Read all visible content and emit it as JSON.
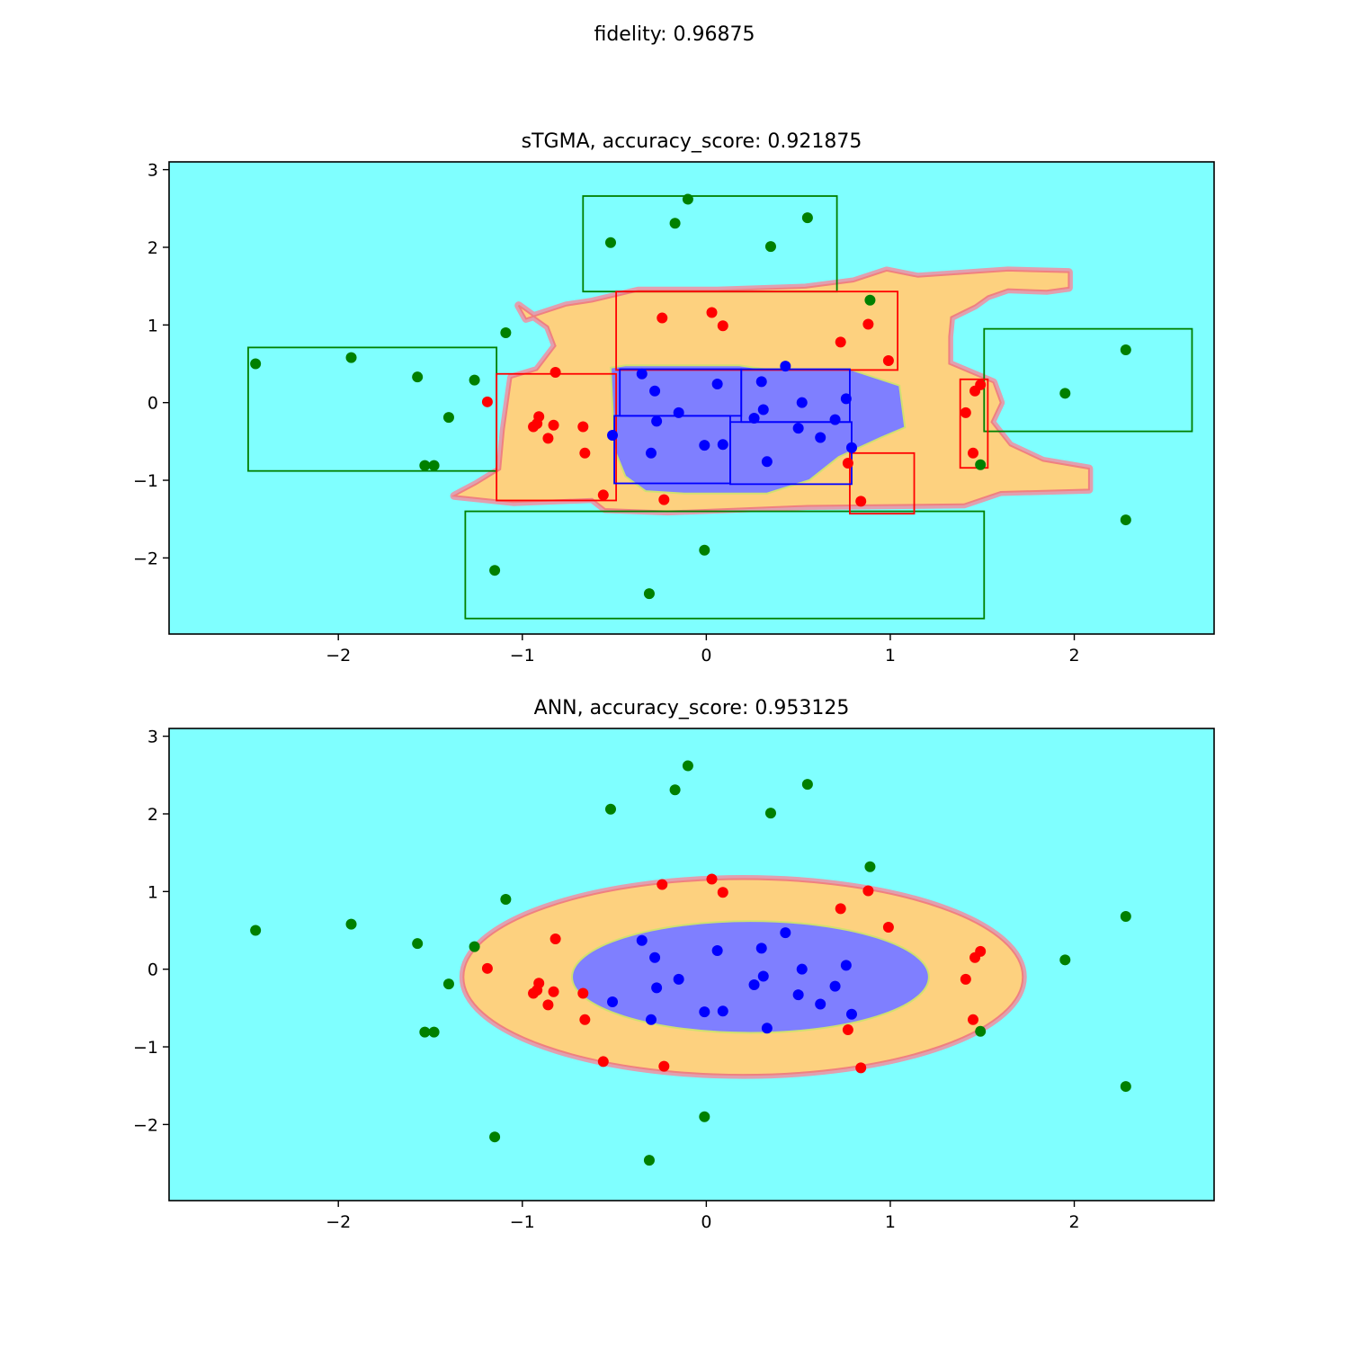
{
  "figure_title": "fidelity: 0.96875",
  "colors": {
    "background_region": "#7fffff",
    "ring_region": "#fdd17f",
    "core_region": "#7f7fff",
    "class_outer": "#008000",
    "class_ring": "#ff0000",
    "class_core": "#0000ff"
  },
  "chart_data": [
    {
      "type": "scatter",
      "title": "sTGMA, accuracy_score: 0.921875",
      "xlabel": "",
      "ylabel": "",
      "xlim": [
        -2.92,
        2.76
      ],
      "ylim": [
        -2.98,
        3.1
      ],
      "xticks": [
        -2,
        -1,
        0,
        1,
        2
      ],
      "yticks": [
        -2,
        -1,
        0,
        1,
        2,
        3
      ],
      "grid": false,
      "legend": "none",
      "decision_regions": {
        "ring": [
          [
            -1.37,
            -1.2
          ],
          [
            -1.05,
            -1.28
          ],
          [
            -0.62,
            -1.24
          ],
          [
            -0.55,
            -1.37
          ],
          [
            -0.21,
            -1.4
          ],
          [
            0.55,
            -1.33
          ],
          [
            1.4,
            -1.31
          ],
          [
            1.6,
            -1.15
          ],
          [
            2.08,
            -1.12
          ],
          [
            2.08,
            -0.85
          ],
          [
            1.83,
            -0.75
          ],
          [
            1.65,
            -0.55
          ],
          [
            1.55,
            -0.25
          ],
          [
            1.6,
            0.0
          ],
          [
            1.56,
            0.26
          ],
          [
            1.32,
            0.5
          ],
          [
            1.32,
            0.85
          ],
          [
            1.33,
            1.1
          ],
          [
            1.46,
            1.25
          ],
          [
            1.53,
            1.37
          ],
          [
            1.64,
            1.46
          ],
          [
            1.85,
            1.44
          ],
          [
            1.97,
            1.48
          ],
          [
            1.97,
            1.68
          ],
          [
            1.64,
            1.7
          ],
          [
            1.15,
            1.62
          ],
          [
            0.98,
            1.7
          ],
          [
            0.8,
            1.56
          ],
          [
            0.54,
            1.48
          ],
          [
            0.06,
            1.44
          ],
          [
            -0.37,
            1.44
          ],
          [
            -0.62,
            1.3
          ],
          [
            -0.76,
            1.25
          ],
          [
            -0.98,
            1.08
          ],
          [
            -1.02,
            1.25
          ],
          [
            -0.86,
            0.98
          ],
          [
            -0.82,
            0.73
          ],
          [
            -0.92,
            0.42
          ],
          [
            -1.06,
            0.32
          ],
          [
            -1.1,
            -0.35
          ],
          [
            -1.12,
            -0.86
          ],
          [
            -1.25,
            -1.05
          ]
        ],
        "core": [
          [
            -0.52,
            0.45
          ],
          [
            -0.44,
            0.48
          ],
          [
            0.18,
            0.48
          ],
          [
            0.32,
            0.43
          ],
          [
            0.78,
            0.43
          ],
          [
            1.05,
            0.22
          ],
          [
            1.08,
            -0.32
          ],
          [
            0.95,
            -0.45
          ],
          [
            0.72,
            -0.7
          ],
          [
            0.56,
            -1.0
          ],
          [
            0.33,
            -1.17
          ],
          [
            -0.12,
            -1.17
          ],
          [
            -0.33,
            -1.14
          ],
          [
            -0.44,
            -0.95
          ],
          [
            -0.5,
            -0.6
          ],
          [
            -0.51,
            -0.05
          ]
        ]
      },
      "rules": [
        {
          "class": "outer",
          "x": [
            -0.67,
            0.71
          ],
          "y": [
            1.43,
            2.66
          ]
        },
        {
          "class": "outer",
          "x": [
            -2.49,
            -1.14
          ],
          "y": [
            -0.88,
            0.71
          ]
        },
        {
          "class": "outer",
          "x": [
            1.51,
            2.64
          ],
          "y": [
            -0.37,
            0.95
          ]
        },
        {
          "class": "outer",
          "x": [
            -1.31,
            1.51
          ],
          "y": [
            -2.78,
            -1.4
          ]
        },
        {
          "class": "ring",
          "x": [
            -0.49,
            1.04
          ],
          "y": [
            0.42,
            1.43
          ]
        },
        {
          "class": "ring",
          "x": [
            -1.14,
            -0.49
          ],
          "y": [
            -1.26,
            0.37
          ]
        },
        {
          "class": "ring",
          "x": [
            0.78,
            1.13
          ],
          "y": [
            -1.43,
            -0.65
          ]
        },
        {
          "class": "ring",
          "x": [
            1.38,
            1.53
          ],
          "y": [
            -0.84,
            0.3
          ]
        },
        {
          "class": "core",
          "x": [
            -0.47,
            0.19
          ],
          "y": [
            -0.17,
            0.43
          ]
        },
        {
          "class": "core",
          "x": [
            0.19,
            0.78
          ],
          "y": [
            -0.25,
            0.43
          ]
        },
        {
          "class": "core",
          "x": [
            -0.5,
            0.13
          ],
          "y": [
            -1.04,
            -0.17
          ]
        },
        {
          "class": "core",
          "x": [
            0.13,
            0.79
          ],
          "y": [
            -1.05,
            -0.25
          ]
        }
      ],
      "points": {
        "outer": [
          [
            -0.1,
            2.62
          ],
          [
            -0.17,
            2.31
          ],
          [
            0.55,
            2.38
          ],
          [
            -0.52,
            2.06
          ],
          [
            0.35,
            2.01
          ],
          [
            0.89,
            1.32
          ],
          [
            -1.09,
            0.9
          ],
          [
            -2.45,
            0.5
          ],
          [
            -1.93,
            0.58
          ],
          [
            -1.57,
            0.33
          ],
          [
            -1.26,
            0.29
          ],
          [
            -1.4,
            -0.19
          ],
          [
            -1.53,
            -0.81
          ],
          [
            -1.48,
            -0.81
          ],
          [
            2.28,
            0.68
          ],
          [
            1.95,
            0.12
          ],
          [
            1.49,
            -0.8
          ],
          [
            2.28,
            -1.51
          ],
          [
            -0.01,
            -1.9
          ],
          [
            -1.15,
            -2.16
          ],
          [
            -0.31,
            -2.46
          ]
        ],
        "ring": [
          [
            -0.24,
            1.09
          ],
          [
            0.03,
            1.16
          ],
          [
            0.09,
            0.99
          ],
          [
            0.88,
            1.01
          ],
          [
            0.73,
            0.78
          ],
          [
            0.99,
            0.54
          ],
          [
            -0.82,
            0.39
          ],
          [
            -1.19,
            0.01
          ],
          [
            -0.91,
            -0.18
          ],
          [
            -0.92,
            -0.27
          ],
          [
            -0.94,
            -0.31
          ],
          [
            -0.83,
            -0.29
          ],
          [
            -0.86,
            -0.46
          ],
          [
            -0.67,
            -0.31
          ],
          [
            -0.66,
            -0.65
          ],
          [
            -0.56,
            -1.19
          ],
          [
            -0.23,
            -1.25
          ],
          [
            0.77,
            -0.78
          ],
          [
            0.84,
            -1.27
          ],
          [
            1.41,
            -0.13
          ],
          [
            1.46,
            0.15
          ],
          [
            1.49,
            0.23
          ],
          [
            1.45,
            -0.65
          ]
        ],
        "core": [
          [
            -0.35,
            0.37
          ],
          [
            -0.28,
            0.15
          ],
          [
            0.06,
            0.24
          ],
          [
            0.3,
            0.27
          ],
          [
            0.43,
            0.47
          ],
          [
            0.52,
            0.0
          ],
          [
            0.76,
            0.05
          ],
          [
            -0.15,
            -0.13
          ],
          [
            -0.27,
            -0.24
          ],
          [
            0.31,
            -0.09
          ],
          [
            0.26,
            -0.2
          ],
          [
            0.7,
            -0.22
          ],
          [
            -0.51,
            -0.42
          ],
          [
            -0.3,
            -0.65
          ],
          [
            -0.01,
            -0.55
          ],
          [
            0.09,
            -0.54
          ],
          [
            0.5,
            -0.33
          ],
          [
            0.62,
            -0.45
          ],
          [
            0.79,
            -0.58
          ],
          [
            0.33,
            -0.76
          ]
        ]
      }
    },
    {
      "type": "scatter",
      "title": "ANN, accuracy_score: 0.953125",
      "xlabel": "",
      "ylabel": "",
      "xlim": [
        -2.92,
        2.76
      ],
      "ylim": [
        -2.98,
        3.1
      ],
      "xticks": [
        -2,
        -1,
        0,
        1,
        2
      ],
      "yticks": [
        -2,
        -1,
        0,
        1,
        2,
        3
      ],
      "grid": false,
      "legend": "none",
      "decision_regions": {
        "ring_ellipse": {
          "cx": 0.2,
          "cy": -0.1,
          "rx": 1.52,
          "ry": 1.26
        },
        "core_ellipse": {
          "cx": 0.24,
          "cy": -0.1,
          "rx": 0.97,
          "ry": 0.72
        }
      },
      "points": {
        "outer": [
          [
            -0.1,
            2.62
          ],
          [
            -0.17,
            2.31
          ],
          [
            0.55,
            2.38
          ],
          [
            -0.52,
            2.06
          ],
          [
            0.35,
            2.01
          ],
          [
            0.89,
            1.32
          ],
          [
            -1.09,
            0.9
          ],
          [
            -2.45,
            0.5
          ],
          [
            -1.93,
            0.58
          ],
          [
            -1.57,
            0.33
          ],
          [
            -1.26,
            0.29
          ],
          [
            -1.4,
            -0.19
          ],
          [
            -1.53,
            -0.81
          ],
          [
            -1.48,
            -0.81
          ],
          [
            2.28,
            0.68
          ],
          [
            1.95,
            0.12
          ],
          [
            1.49,
            -0.8
          ],
          [
            2.28,
            -1.51
          ],
          [
            -0.01,
            -1.9
          ],
          [
            -1.15,
            -2.16
          ],
          [
            -0.31,
            -2.46
          ]
        ],
        "ring": [
          [
            -0.24,
            1.09
          ],
          [
            0.03,
            1.16
          ],
          [
            0.09,
            0.99
          ],
          [
            0.88,
            1.01
          ],
          [
            0.73,
            0.78
          ],
          [
            0.99,
            0.54
          ],
          [
            -0.82,
            0.39
          ],
          [
            -1.19,
            0.01
          ],
          [
            -0.91,
            -0.18
          ],
          [
            -0.92,
            -0.27
          ],
          [
            -0.94,
            -0.31
          ],
          [
            -0.83,
            -0.29
          ],
          [
            -0.86,
            -0.46
          ],
          [
            -0.67,
            -0.31
          ],
          [
            -0.66,
            -0.65
          ],
          [
            -0.56,
            -1.19
          ],
          [
            -0.23,
            -1.25
          ],
          [
            0.77,
            -0.78
          ],
          [
            0.84,
            -1.27
          ],
          [
            1.41,
            -0.13
          ],
          [
            1.46,
            0.15
          ],
          [
            1.49,
            0.23
          ],
          [
            1.45,
            -0.65
          ]
        ],
        "core": [
          [
            -0.35,
            0.37
          ],
          [
            -0.28,
            0.15
          ],
          [
            0.06,
            0.24
          ],
          [
            0.3,
            0.27
          ],
          [
            0.43,
            0.47
          ],
          [
            0.52,
            0.0
          ],
          [
            0.76,
            0.05
          ],
          [
            -0.15,
            -0.13
          ],
          [
            -0.27,
            -0.24
          ],
          [
            0.31,
            -0.09
          ],
          [
            0.26,
            -0.2
          ],
          [
            0.7,
            -0.22
          ],
          [
            -0.51,
            -0.42
          ],
          [
            -0.3,
            -0.65
          ],
          [
            -0.01,
            -0.55
          ],
          [
            0.09,
            -0.54
          ],
          [
            0.5,
            -0.33
          ],
          [
            0.62,
            -0.45
          ],
          [
            0.79,
            -0.58
          ],
          [
            0.33,
            -0.76
          ]
        ]
      }
    }
  ]
}
